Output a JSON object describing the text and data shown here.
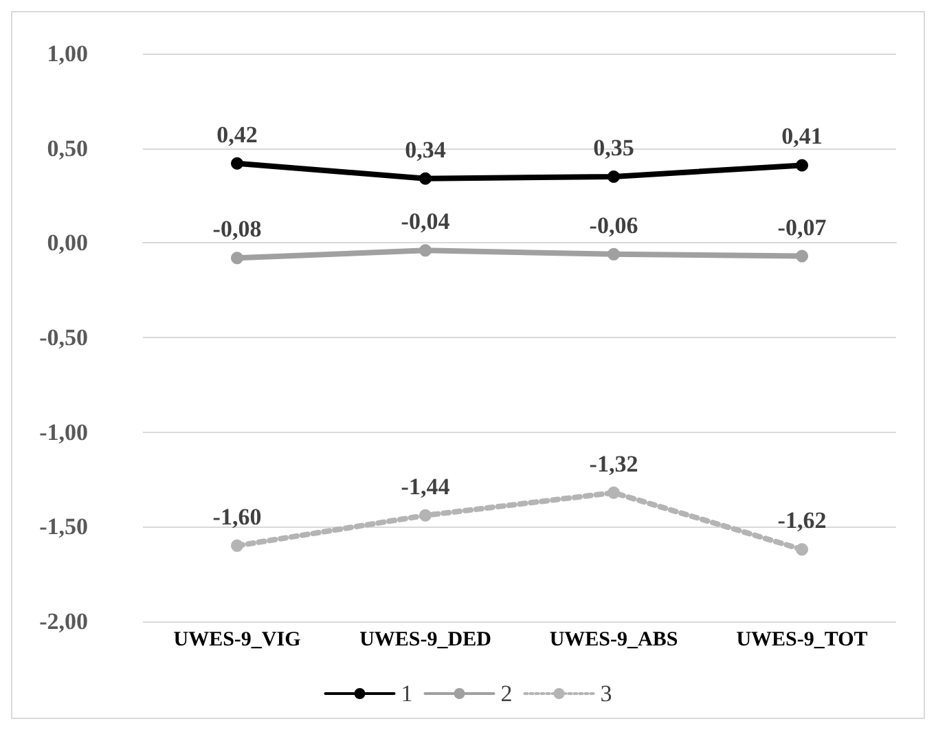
{
  "chart_data": {
    "type": "line",
    "categories": [
      "UWES-9_VIG",
      "UWES-9_DED",
      "UWES-9_ABS",
      "UWES-9_TOT"
    ],
    "series": [
      {
        "name": "1",
        "color": "#000000",
        "line_style": "solid",
        "values": [
          0.42,
          0.34,
          0.35,
          0.41
        ],
        "value_labels": [
          "0,42",
          "0,34",
          "0,35",
          "0,41"
        ]
      },
      {
        "name": "2",
        "color": "#a0a0a0",
        "line_style": "solid",
        "values": [
          -0.08,
          -0.04,
          -0.06,
          -0.07
        ],
        "value_labels": [
          "-0,08",
          "-0,04",
          "-0,06",
          "-0,07"
        ]
      },
      {
        "name": "3",
        "color": "#b4b4b4",
        "line_style": "dotted",
        "values": [
          -1.6,
          -1.44,
          -1.32,
          -1.62
        ],
        "value_labels": [
          "-1,60",
          "-1,44",
          "-1,32",
          "-1,62"
        ]
      }
    ],
    "ylim": [
      -2,
      1
    ],
    "yticks": [
      {
        "value": -2,
        "label": "-2,00"
      },
      {
        "value": -1.5,
        "label": "-1,50"
      },
      {
        "value": -1,
        "label": "-1,00"
      },
      {
        "value": -0.5,
        "label": "-0,50"
      },
      {
        "value": 0,
        "label": "0,00"
      },
      {
        "value": 0.5,
        "label": "0,50"
      },
      {
        "value": 1,
        "label": "1,00"
      }
    ],
    "grid": "y",
    "legend": "bottom",
    "marker": "circle"
  }
}
